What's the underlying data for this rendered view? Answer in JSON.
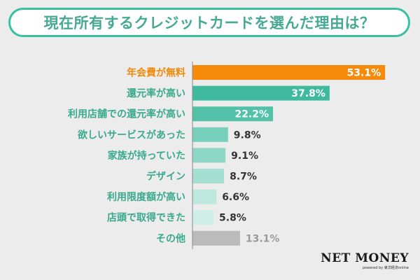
{
  "chart_data": {
    "type": "bar",
    "orientation": "horizontal",
    "title": "現在所有するクレジットカードを選んだ理由は？",
    "categories": [
      "年会費が無料",
      "還元率が高い",
      "利用店舗での還元率が高い",
      "欲しいサービスがあった",
      "家族が持っていた",
      "デザイン",
      "利用限度額が高い",
      "店頭で取得できた",
      "その他"
    ],
    "values": [
      53.1,
      37.8,
      22.2,
      9.8,
      9.1,
      8.7,
      6.6,
      5.8,
      13.1
    ],
    "value_labels": [
      "53.1%",
      "37.8%",
      "22.2%",
      "9.8%",
      "9.1%",
      "8.7%",
      "6.6%",
      "5.8%",
      "13.1%"
    ],
    "unit": "%",
    "xlim": [
      0,
      55
    ],
    "xlabel": "",
    "ylabel": "",
    "grid": false,
    "legend": "none",
    "colors": {
      "highlight": "#f58a0b",
      "category_label_default": "#3aa98e",
      "category_label_highlight": "#f08a0b",
      "value_inside": "#ffffff",
      "value_outside": "#333333",
      "other": "#bbbbbb",
      "other_label": "#9a9a9a"
    },
    "bar_colors": [
      "#f58a0b",
      "#40ba9f",
      "#52c1a8",
      "#78d0bc",
      "#8ed7c6",
      "#a4dfd1",
      "#bee8de",
      "#cfeee6",
      "#bbbbbb"
    ],
    "value_inside": [
      true,
      true,
      true,
      false,
      false,
      false,
      false,
      false,
      false
    ]
  },
  "logo": {
    "main": "NET MONEY",
    "sub": "powered by 東洋経済online"
  },
  "title_color": "#46a994",
  "border_color": "#3bbfa3"
}
